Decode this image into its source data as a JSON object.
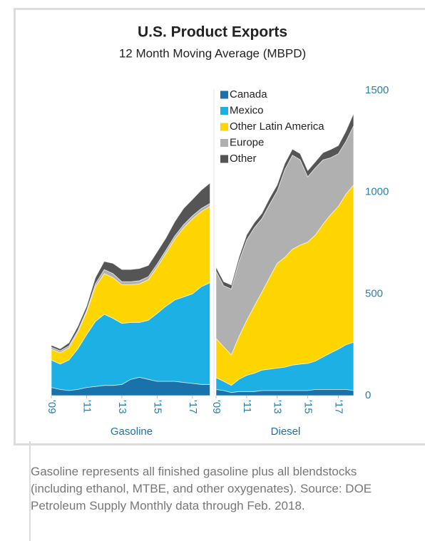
{
  "chart_data": {
    "type": "stacked_area",
    "title": "U.S. Product Exports",
    "subtitle": "12 Month Moving Average (MBPD)",
    "legend": [
      {
        "name": "Canada",
        "color": "#1a72ad"
      },
      {
        "name": "Mexico",
        "color": "#1db0e4"
      },
      {
        "name": "Other Latin America",
        "color": "#ffd500"
      },
      {
        "name": "Europe",
        "color": "#b0b0b0"
      },
      {
        "name": "Other",
        "color": "#555555"
      }
    ],
    "x": [
      2009,
      2009.5,
      2010,
      2010.5,
      2011,
      2011.5,
      2012,
      2012.5,
      2013,
      2013.5,
      2014,
      2014.5,
      2015,
      2015.5,
      2016,
      2016.5,
      2017,
      2017.5,
      2018
    ],
    "xlim": [
      2009,
      2018.1
    ],
    "xticks": [
      {
        "value": 2009,
        "label": "'09"
      },
      {
        "value": 2011,
        "label": "'11"
      },
      {
        "value": 2013,
        "label": "'13"
      },
      {
        "value": 2015,
        "label": "'15"
      },
      {
        "value": 2017,
        "label": "'17"
      }
    ],
    "ylim": [
      0,
      1500
    ],
    "yticks": [
      0,
      500,
      1000,
      1500
    ],
    "panels": [
      {
        "label": "Gasoline",
        "series": [
          {
            "values": [
              40,
              30,
              25,
              30,
              40,
              45,
              50,
              50,
              55,
              80,
              90,
              80,
              70,
              70,
              70,
              65,
              60,
              55,
              55
            ]
          },
          {
            "values": [
              135,
              125,
              150,
              200,
              260,
              320,
              350,
              330,
              300,
              280,
              270,
              290,
              334,
              370,
              400,
              420,
              440,
              480,
              500
            ]
          },
          {
            "values": [
              53,
              55,
              60,
              80,
              110,
              170,
              200,
              200,
              190,
              185,
              190,
              200,
              228,
              260,
              300,
              340,
              369,
              370,
              375
            ]
          },
          {
            "values": [
              10,
              10,
              10,
              10,
              10,
              15,
              20,
              20,
              15,
              15,
              15,
              15,
              15,
              15,
              15,
              15,
              15,
              15,
              15
            ]
          },
          {
            "values": [
              10,
              10,
              15,
              20,
              20,
              30,
              40,
              50,
              60,
              60,
              60,
              55,
              60,
              60,
              70,
              80,
              80,
              90,
              100
            ]
          }
        ]
      },
      {
        "label": "Diesel",
        "series": [
          {
            "values": [
              30,
              25,
              15,
              20,
              20,
              20,
              25,
              25,
              25,
              25,
              25,
              25,
              25,
              30,
              30,
              30,
              30,
              30,
              25
            ]
          },
          {
            "values": [
              58,
              45,
              35,
              60,
              80,
              90,
              100,
              105,
              110,
              115,
              125,
              130,
              133,
              140,
              160,
              180,
              198,
              220,
              238
            ]
          },
          {
            "values": [
              193,
              170,
              150,
              210,
              269,
              330,
              384,
              450,
              515,
              540,
              570,
              585,
              597,
              620,
              653,
              680,
              702,
              740,
              773
            ]
          },
          {
            "values": [
              331,
              300,
              324,
              370,
              396,
              385,
              362,
              360,
              356,
              431,
              462,
              420,
              321,
              330,
              316,
              280,
              259,
              260,
              291
            ]
          },
          {
            "values": [
              20,
              20,
              20,
              20,
              25,
              25,
              25,
              30,
              30,
              30,
              30,
              30,
              30,
              30,
              35,
              40,
              40,
              50,
              60
            ]
          }
        ]
      }
    ],
    "footnote": "Gasoline represents all finished gasoline plus all blendstocks (including ethanol, MTBE, and other oxygenates). Source: DOE Petroleum Supply Monthly data through Feb. 2018."
  }
}
